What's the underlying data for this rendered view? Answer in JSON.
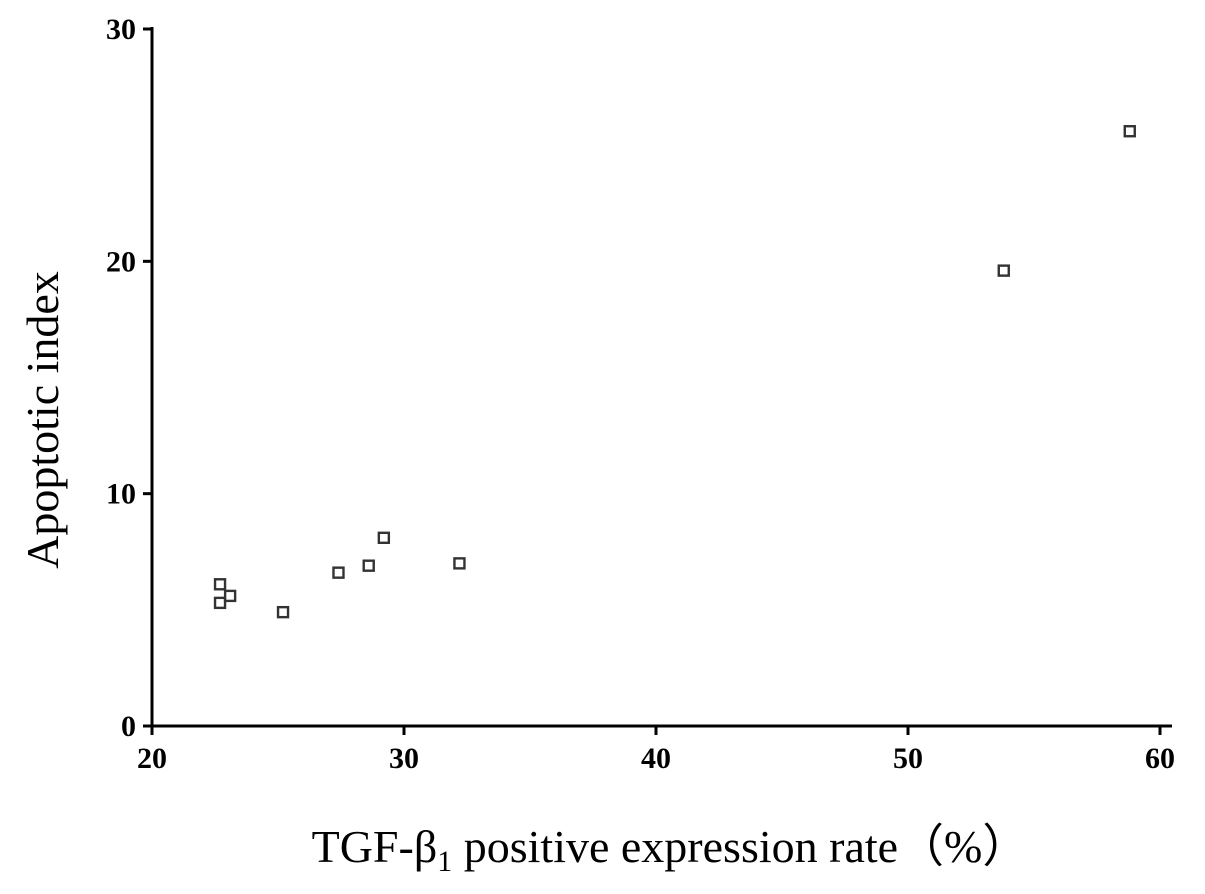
{
  "chart_data": {
    "type": "scatter",
    "title": "",
    "xlabel": "TGF-β1 positive expression rate（%）",
    "xlabel_parts": {
      "prefix": "TGF-β",
      "subscript": "1",
      "suffix": " positive expression rate（%）"
    },
    "ylabel": "Apoptotic index",
    "xlim": [
      20,
      60
    ],
    "ylim": [
      0,
      30
    ],
    "x_ticks": [
      20,
      30,
      40,
      50,
      60
    ],
    "y_ticks": [
      0,
      10,
      20,
      30
    ],
    "x_tick_labels": [
      "20",
      "30",
      "40",
      "50",
      "60"
    ],
    "y_tick_labels": [
      "0",
      "10",
      "20",
      "30"
    ],
    "grid": false,
    "marker": "open-square",
    "series": [
      {
        "x": [
          22.7,
          22.7,
          23.1,
          25.2,
          27.4,
          28.6,
          29.2,
          32.2,
          53.8,
          58.8
        ],
        "y": [
          6.1,
          5.3,
          5.6,
          4.9,
          6.6,
          6.9,
          8.1,
          7.0,
          19.6,
          25.6
        ]
      }
    ]
  }
}
